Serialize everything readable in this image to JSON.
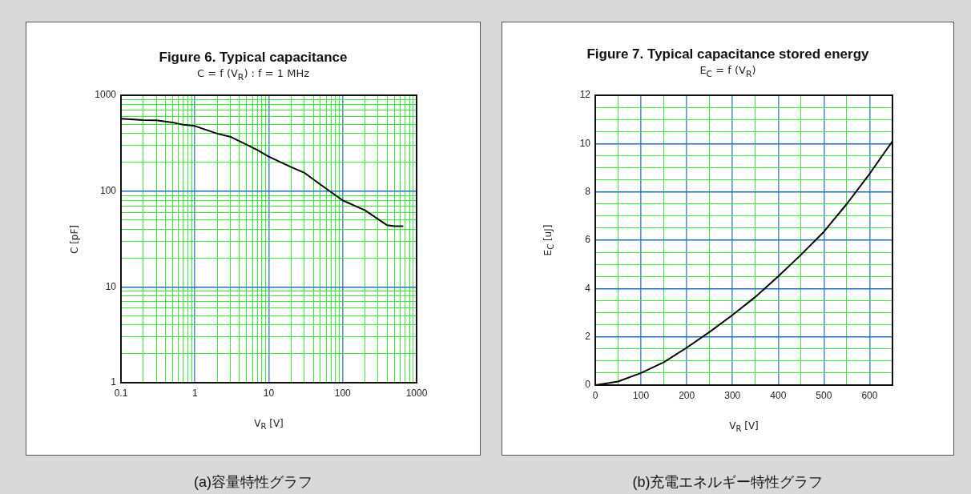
{
  "chart_data": [
    {
      "type": "line",
      "title": "Figure 6. Typical capacitance",
      "subtitle": "C = f (V$_{R}$) : f = 1 MHz",
      "xlabel": "V$_{R}$  [V]",
      "ylabel": "C  [pF]",
      "log": "xy",
      "grid": true,
      "legend": false,
      "marker": "none",
      "line_style": "solid",
      "x": [
        0.1,
        0.2,
        0.3,
        0.5,
        0.7,
        1,
        2,
        3,
        5,
        7,
        10,
        20,
        30,
        50,
        100,
        200,
        400,
        500,
        660
      ],
      "series": [
        {
          "color": "#000000",
          "values": [
            571,
            550,
            549,
            520,
            492,
            478,
            398,
            370,
            305,
            268,
            229,
            178,
            156,
            117,
            80,
            63,
            44,
            43,
            43
          ]
        }
      ],
      "xlim": [
        0.1,
        1000
      ],
      "ylim": [
        1,
        1000
      ],
      "xticks": [
        0.1,
        {
          "value": 0.2,
          "label": null
        },
        {
          "value": 0.3,
          "label": null
        },
        {
          "value": 0.4,
          "label": null
        },
        {
          "value": 0.5,
          "label": null
        },
        {
          "value": 0.6,
          "label": null
        },
        {
          "value": 0.7,
          "label": null
        },
        {
          "value": 0.8,
          "label": null
        },
        {
          "value": 0.9,
          "label": null
        },
        1,
        {
          "value": 2,
          "label": null
        },
        {
          "value": 3,
          "label": null
        },
        {
          "value": 4,
          "label": null
        },
        {
          "value": 5,
          "label": null
        },
        {
          "value": 6,
          "label": null
        },
        {
          "value": 7,
          "label": null
        },
        {
          "value": 8,
          "label": null
        },
        {
          "value": 9,
          "label": null
        },
        10,
        {
          "value": 20,
          "label": null
        },
        {
          "value": 30,
          "label": null
        },
        {
          "value": 40,
          "label": null
        },
        {
          "value": 50,
          "label": null
        },
        {
          "value": 60,
          "label": null
        },
        {
          "value": 70,
          "label": null
        },
        {
          "value": 80,
          "label": null
        },
        {
          "value": 90,
          "label": null
        },
        100,
        {
          "value": 200,
          "label": null
        },
        {
          "value": 300,
          "label": null
        },
        {
          "value": 400,
          "label": null
        },
        {
          "value": 500,
          "label": null
        },
        {
          "value": 600,
          "label": null
        },
        {
          "value": 700,
          "label": null
        },
        {
          "value": 800,
          "label": null
        },
        {
          "value": 900,
          "label": null
        },
        1000
      ],
      "yticks": [
        1,
        {
          "value": 2,
          "label": null
        },
        {
          "value": 3,
          "label": null
        },
        {
          "value": 4,
          "label": null
        },
        {
          "value": 5,
          "label": null
        },
        {
          "value": 6,
          "label": null
        },
        {
          "value": 7,
          "label": null
        },
        {
          "value": 8,
          "label": null
        },
        {
          "value": 9,
          "label": null
        },
        10,
        {
          "value": 20,
          "label": null
        },
        {
          "value": 30,
          "label": null
        },
        {
          "value": 40,
          "label": null
        },
        {
          "value": 50,
          "label": null
        },
        {
          "value": 60,
          "label": null
        },
        {
          "value": 70,
          "label": null
        },
        {
          "value": 80,
          "label": null
        },
        {
          "value": 90,
          "label": null
        },
        100,
        {
          "value": 200,
          "label": null
        },
        {
          "value": 300,
          "label": null
        },
        {
          "value": 400,
          "label": null
        },
        {
          "value": 500,
          "label": null
        },
        {
          "value": 600,
          "label": null
        },
        {
          "value": 700,
          "label": null
        },
        {
          "value": 800,
          "label": null
        },
        {
          "value": 900,
          "label": null
        },
        1000
      ],
      "annotations": [
        "(a)容量特性グラフ"
      ]
    },
    {
      "type": "line",
      "title": "Figure 7. Typical capacitance stored energy",
      "subtitle": "E$_{C}$ = f (V$_{R}$)",
      "xlabel": "V$_{R}$  [V]",
      "ylabel": "E$_{C}$  [uJ]",
      "grid": true,
      "legend": false,
      "marker": "none",
      "line_style": "solid",
      "x": [
        0,
        50,
        100,
        150,
        200,
        250,
        300,
        350,
        400,
        450,
        500,
        550,
        600,
        650
      ],
      "series": [
        {
          "color": "#000000",
          "values": [
            0,
            0.15,
            0.5,
            0.95,
            1.55,
            2.2,
            2.9,
            3.65,
            4.5,
            5.4,
            6.35,
            7.5,
            8.75,
            10.1
          ]
        }
      ],
      "xlim": [
        0,
        650
      ],
      "ylim": [
        0,
        12
      ],
      "xticks": [
        0,
        {
          "value": 50,
          "label": null
        },
        100,
        {
          "value": 150,
          "label": null
        },
        200,
        {
          "value": 250,
          "label": null
        },
        300,
        {
          "value": 350,
          "label": null
        },
        400,
        {
          "value": 450,
          "label": null
        },
        500,
        {
          "value": 550,
          "label": null
        },
        600
      ],
      "yticks": [
        0,
        {
          "value": 0.5,
          "label": null
        },
        {
          "value": 1,
          "label": null
        },
        {
          "value": 1.5,
          "label": null
        },
        2,
        {
          "value": 2.5,
          "label": null
        },
        {
          "value": 3,
          "label": null
        },
        {
          "value": 3.5,
          "label": null
        },
        4,
        {
          "value": 4.5,
          "label": null
        },
        {
          "value": 5,
          "label": null
        },
        {
          "value": 5.5,
          "label": null
        },
        6,
        {
          "value": 6.5,
          "label": null
        },
        {
          "value": 7,
          "label": null
        },
        {
          "value": 7.5,
          "label": null
        },
        8,
        {
          "value": 8.5,
          "label": null
        },
        {
          "value": 9,
          "label": null
        },
        {
          "value": 9.5,
          "label": null
        },
        10,
        {
          "value": 10.5,
          "label": null
        },
        {
          "value": 11,
          "label": null
        },
        {
          "value": 11.5,
          "label": null
        },
        12
      ],
      "annotations": [
        "(b)充電エネルギー特性グラフ"
      ]
    }
  ]
}
